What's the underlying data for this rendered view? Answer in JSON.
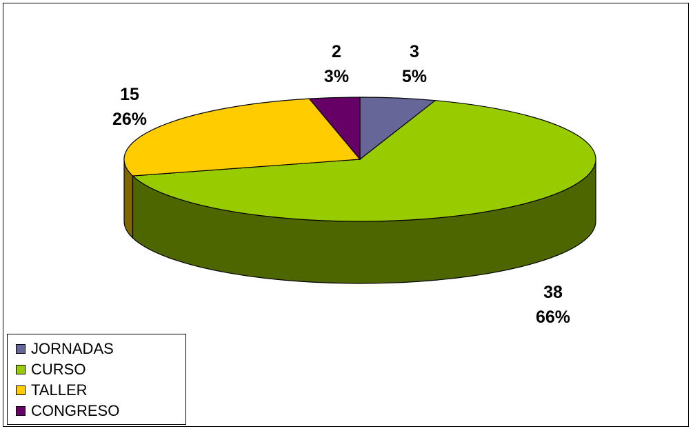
{
  "chart_data": {
    "type": "pie",
    "style": "3d",
    "slices": [
      {
        "label": "JORNADAS",
        "value": 3,
        "percent": "5%",
        "color": "#666699",
        "side_color": "#333366"
      },
      {
        "label": "CURSO",
        "value": 38,
        "percent": "66%",
        "color": "#99cc00",
        "side_color": "#4d6600"
      },
      {
        "label": "TALLER",
        "value": 15,
        "percent": "26%",
        "color": "#ffcc00",
        "side_color": "#806600"
      },
      {
        "label": "CONGRESO",
        "value": 2,
        "percent": "3%",
        "color": "#660066",
        "side_color": "#330033"
      }
    ],
    "legend_position": "bottom-left"
  }
}
